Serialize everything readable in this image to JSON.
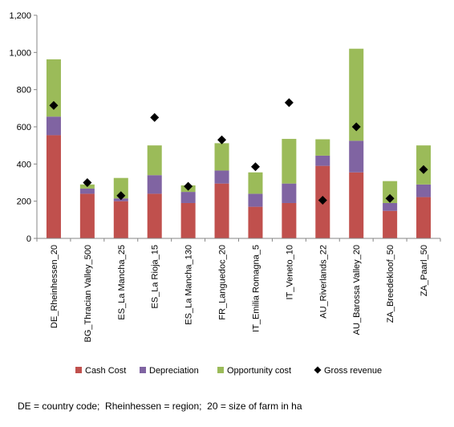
{
  "chart_data": {
    "type": "bar",
    "stacked": true,
    "categories": [
      "DE_Rheinhessen_20",
      "BG_Thracian Valley_500",
      "ES_La Mancha_25",
      "ES_La Rioja_15",
      "ES_La Mancha_130",
      "FR_Languedoc_20",
      "IT_Emilia Romagna_5",
      "IT_Veneto_10",
      "AU_Riverlands_22",
      "AU_Barossa Valley_20",
      "ZA_Breedekloof_50",
      "ZA_Paarl_50"
    ],
    "series": [
      {
        "name": "Cash Cost",
        "kind": "bar",
        "color": "#c0504d",
        "values": [
          555,
          240,
          200,
          240,
          190,
          295,
          170,
          190,
          390,
          355,
          148,
          222
        ]
      },
      {
        "name": "Depreciation",
        "kind": "bar",
        "color": "#8064a2",
        "values": [
          100,
          28,
          15,
          100,
          60,
          70,
          70,
          105,
          55,
          170,
          42,
          68
        ]
      },
      {
        "name": "Opportunity cost",
        "kind": "bar",
        "color": "#9bbb59",
        "values": [
          308,
          22,
          110,
          160,
          35,
          147,
          115,
          240,
          88,
          495,
          118,
          210
        ]
      },
      {
        "name": "Gross revenue",
        "kind": "marker",
        "color": "#000000",
        "values": [
          715,
          300,
          230,
          650,
          280,
          530,
          385,
          730,
          205,
          600,
          215,
          370
        ]
      }
    ],
    "ylim": [
      0,
      1200
    ],
    "yticks": [
      0,
      200,
      400,
      600,
      800,
      1000,
      1200
    ],
    "ytick_labels": [
      "0",
      "200",
      "400",
      "600",
      "800",
      "1,000",
      "1,200"
    ],
    "grid": false,
    "legend_position": "bottom",
    "title": "",
    "xlabel": "",
    "ylabel": ""
  },
  "footnote": "DE = country code;  Rheinhessen = region;  20 = size of farm in ha"
}
